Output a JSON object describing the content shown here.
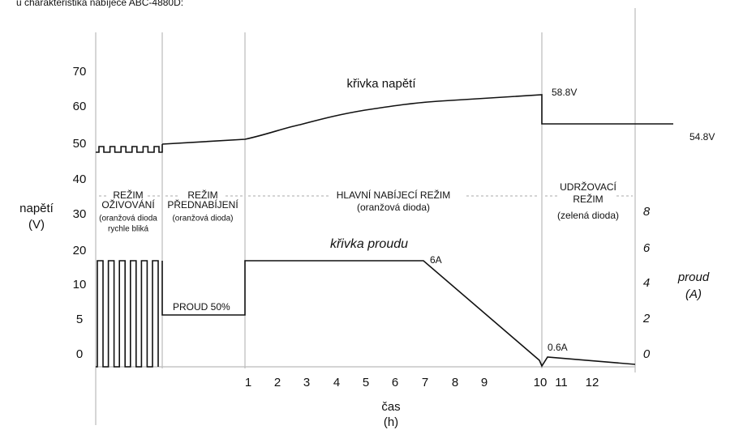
{
  "title": "u charakteristika nabíječe ABC-4880D:",
  "voltage_axis": {
    "label": "napětí",
    "unit": "(V)",
    "ticks": [
      "70",
      "60",
      "50",
      "40",
      "30",
      "20",
      "10",
      "5",
      "0"
    ]
  },
  "current_axis": {
    "label": "proud",
    "unit": "(A)",
    "ticks": [
      "8",
      "6",
      "4",
      "2",
      "0"
    ]
  },
  "time_axis": {
    "label": "čas",
    "unit": "(h)",
    "ticks": [
      "1",
      "2",
      "3",
      "4",
      "5",
      "6",
      "7",
      "8",
      "9",
      "10",
      "11",
      "12"
    ]
  },
  "modes": [
    {
      "lines": [
        "REŽIM",
        "OŽIVOVÁNÍ",
        "(oranžová dioda",
        "rychle bliká"
      ]
    },
    {
      "lines": [
        "REŽIM",
        "PŘEDNABÍJENÍ",
        "(oranžová dioda)"
      ]
    },
    {
      "lines": [
        "HLAVNÍ NABÍJECÍ REŽIM",
        "(oranžová dioda)"
      ]
    },
    {
      "lines": [
        "UDRŽOVACÍ",
        "REŽIM",
        "(zelená dioda)"
      ]
    }
  ],
  "annotations": {
    "voltage_curve": "křivka napětí",
    "current_curve": "křivka proudu",
    "v_high": "58.8V",
    "v_float": "54.8V",
    "i_max": "6A",
    "i_end": "0.6A",
    "precharge": "PROUD  50%"
  }
}
